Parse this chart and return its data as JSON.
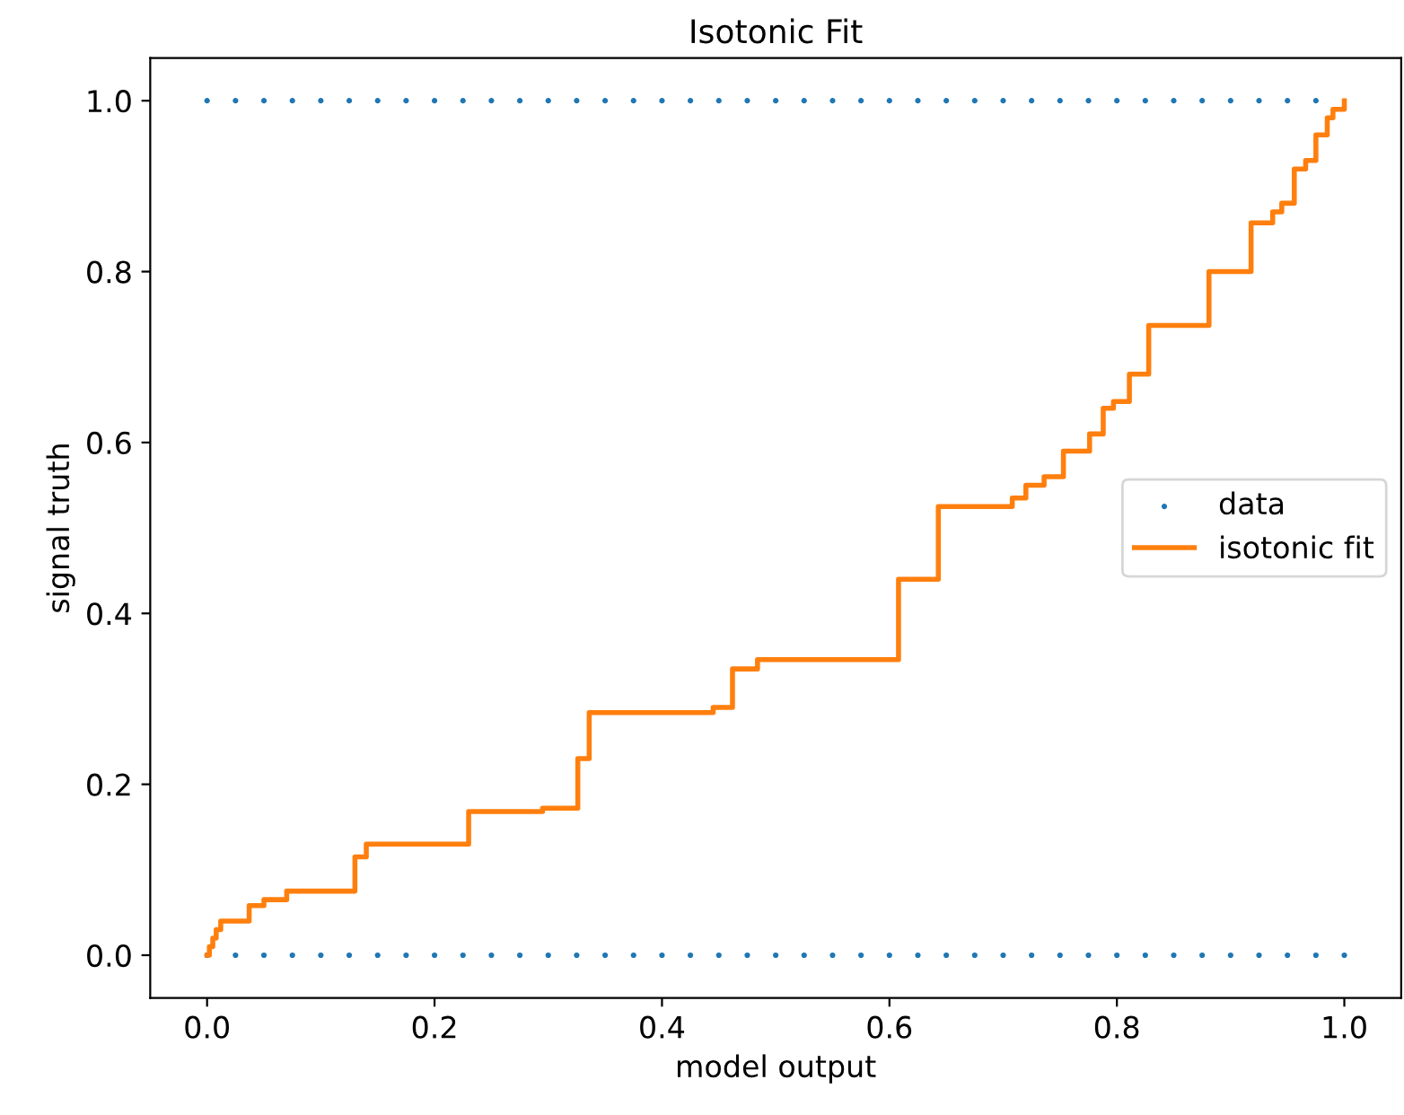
{
  "chart_data": {
    "type": "scatter",
    "title": "Isotonic Fit",
    "xlabel": "model output",
    "ylabel": "signal truth",
    "xlim": [
      -0.05,
      1.05
    ],
    "ylim": [
      -0.05,
      1.05
    ],
    "xticks": [
      {
        "value": 0,
        "label": "0.0"
      },
      0.2,
      0.4,
      0.6,
      0.8,
      {
        "value": 1,
        "label": "1.0"
      }
    ],
    "yticks": [
      {
        "value": 0,
        "label": "0.0"
      },
      0.2,
      0.4,
      0.6,
      0.8,
      {
        "value": 1,
        "label": "1.0"
      }
    ],
    "grid": false,
    "legend": "right",
    "marker": "circle",
    "series": [
      {
        "name": "data",
        "color": "#1f77b4",
        "x": [
          0,
          0.025,
          0.05,
          0.075,
          0.1,
          0.125,
          0.15,
          0.175,
          0.2,
          0.225,
          0.25,
          0.275,
          0.3,
          0.325,
          0.35,
          0.375,
          0.4,
          0.425,
          0.45,
          0.475,
          0.5,
          0.525,
          0.55,
          0.575,
          0.6,
          0.625,
          0.65,
          0.675,
          0.7,
          0.725,
          0.75,
          0.775,
          0.8,
          0.825,
          0.85,
          0.875,
          0.9,
          0.925,
          0.95,
          0.975,
          0,
          0.025,
          0.05,
          0.075,
          0.1,
          0.125,
          0.15,
          0.175,
          0.2,
          0.225,
          0.25,
          0.275,
          0.3,
          0.325,
          0.35,
          0.375,
          0.4,
          0.425,
          0.45,
          0.475,
          0.5,
          0.525,
          0.55,
          0.575,
          0.6,
          0.625,
          0.65,
          0.675,
          0.7,
          0.725,
          0.75,
          0.775,
          0.8,
          0.825,
          0.85,
          0.875,
          0.9,
          0.925,
          0.95,
          0.975,
          1
        ],
        "values": [
          1,
          1,
          1,
          1,
          1,
          1,
          1,
          1,
          1,
          1,
          1,
          1,
          1,
          1,
          1,
          1,
          1,
          1,
          1,
          1,
          1,
          1,
          1,
          1,
          1,
          1,
          1,
          1,
          1,
          1,
          1,
          1,
          1,
          1,
          1,
          1,
          1,
          1,
          1,
          1,
          0,
          0,
          0,
          0,
          0,
          0,
          0,
          0,
          0,
          0,
          0,
          0,
          0,
          0,
          0,
          0,
          0,
          0,
          0,
          0,
          0,
          0,
          0,
          0,
          0,
          0,
          0,
          0,
          0,
          0,
          0,
          0,
          0,
          0,
          0,
          0,
          0,
          0,
          0,
          0,
          0
        ]
      },
      {
        "name": "isotonic fit",
        "type": "step",
        "marker": "none",
        "color": "#ff7f0e",
        "x": [
          0,
          0.002,
          0.005,
          0.008,
          0.012,
          0.037,
          0.05,
          0.07,
          0.13,
          0.14,
          0.23,
          0.295,
          0.326,
          0.336,
          0.445,
          0.462,
          0.484,
          0.608,
          0.643,
          0.708,
          0.72,
          0.736,
          0.753,
          0.776,
          0.788,
          0.797,
          0.811,
          0.828,
          0.881,
          0.918,
          0.937,
          0.945,
          0.956,
          0.966,
          0.975,
          0.985,
          0.99,
          1
        ],
        "values": [
          0,
          0.01,
          0.02,
          0.03,
          0.04,
          0.058,
          0.065,
          0.075,
          0.115,
          0.13,
          0.168,
          0.172,
          0.23,
          0.284,
          0.29,
          0.335,
          0.346,
          0.44,
          0.525,
          0.535,
          0.55,
          0.56,
          0.59,
          0.61,
          0.64,
          0.648,
          0.68,
          0.737,
          0.8,
          0.857,
          0.87,
          0.88,
          0.92,
          0.93,
          0.96,
          0.98,
          0.99,
          1
        ]
      }
    ]
  }
}
